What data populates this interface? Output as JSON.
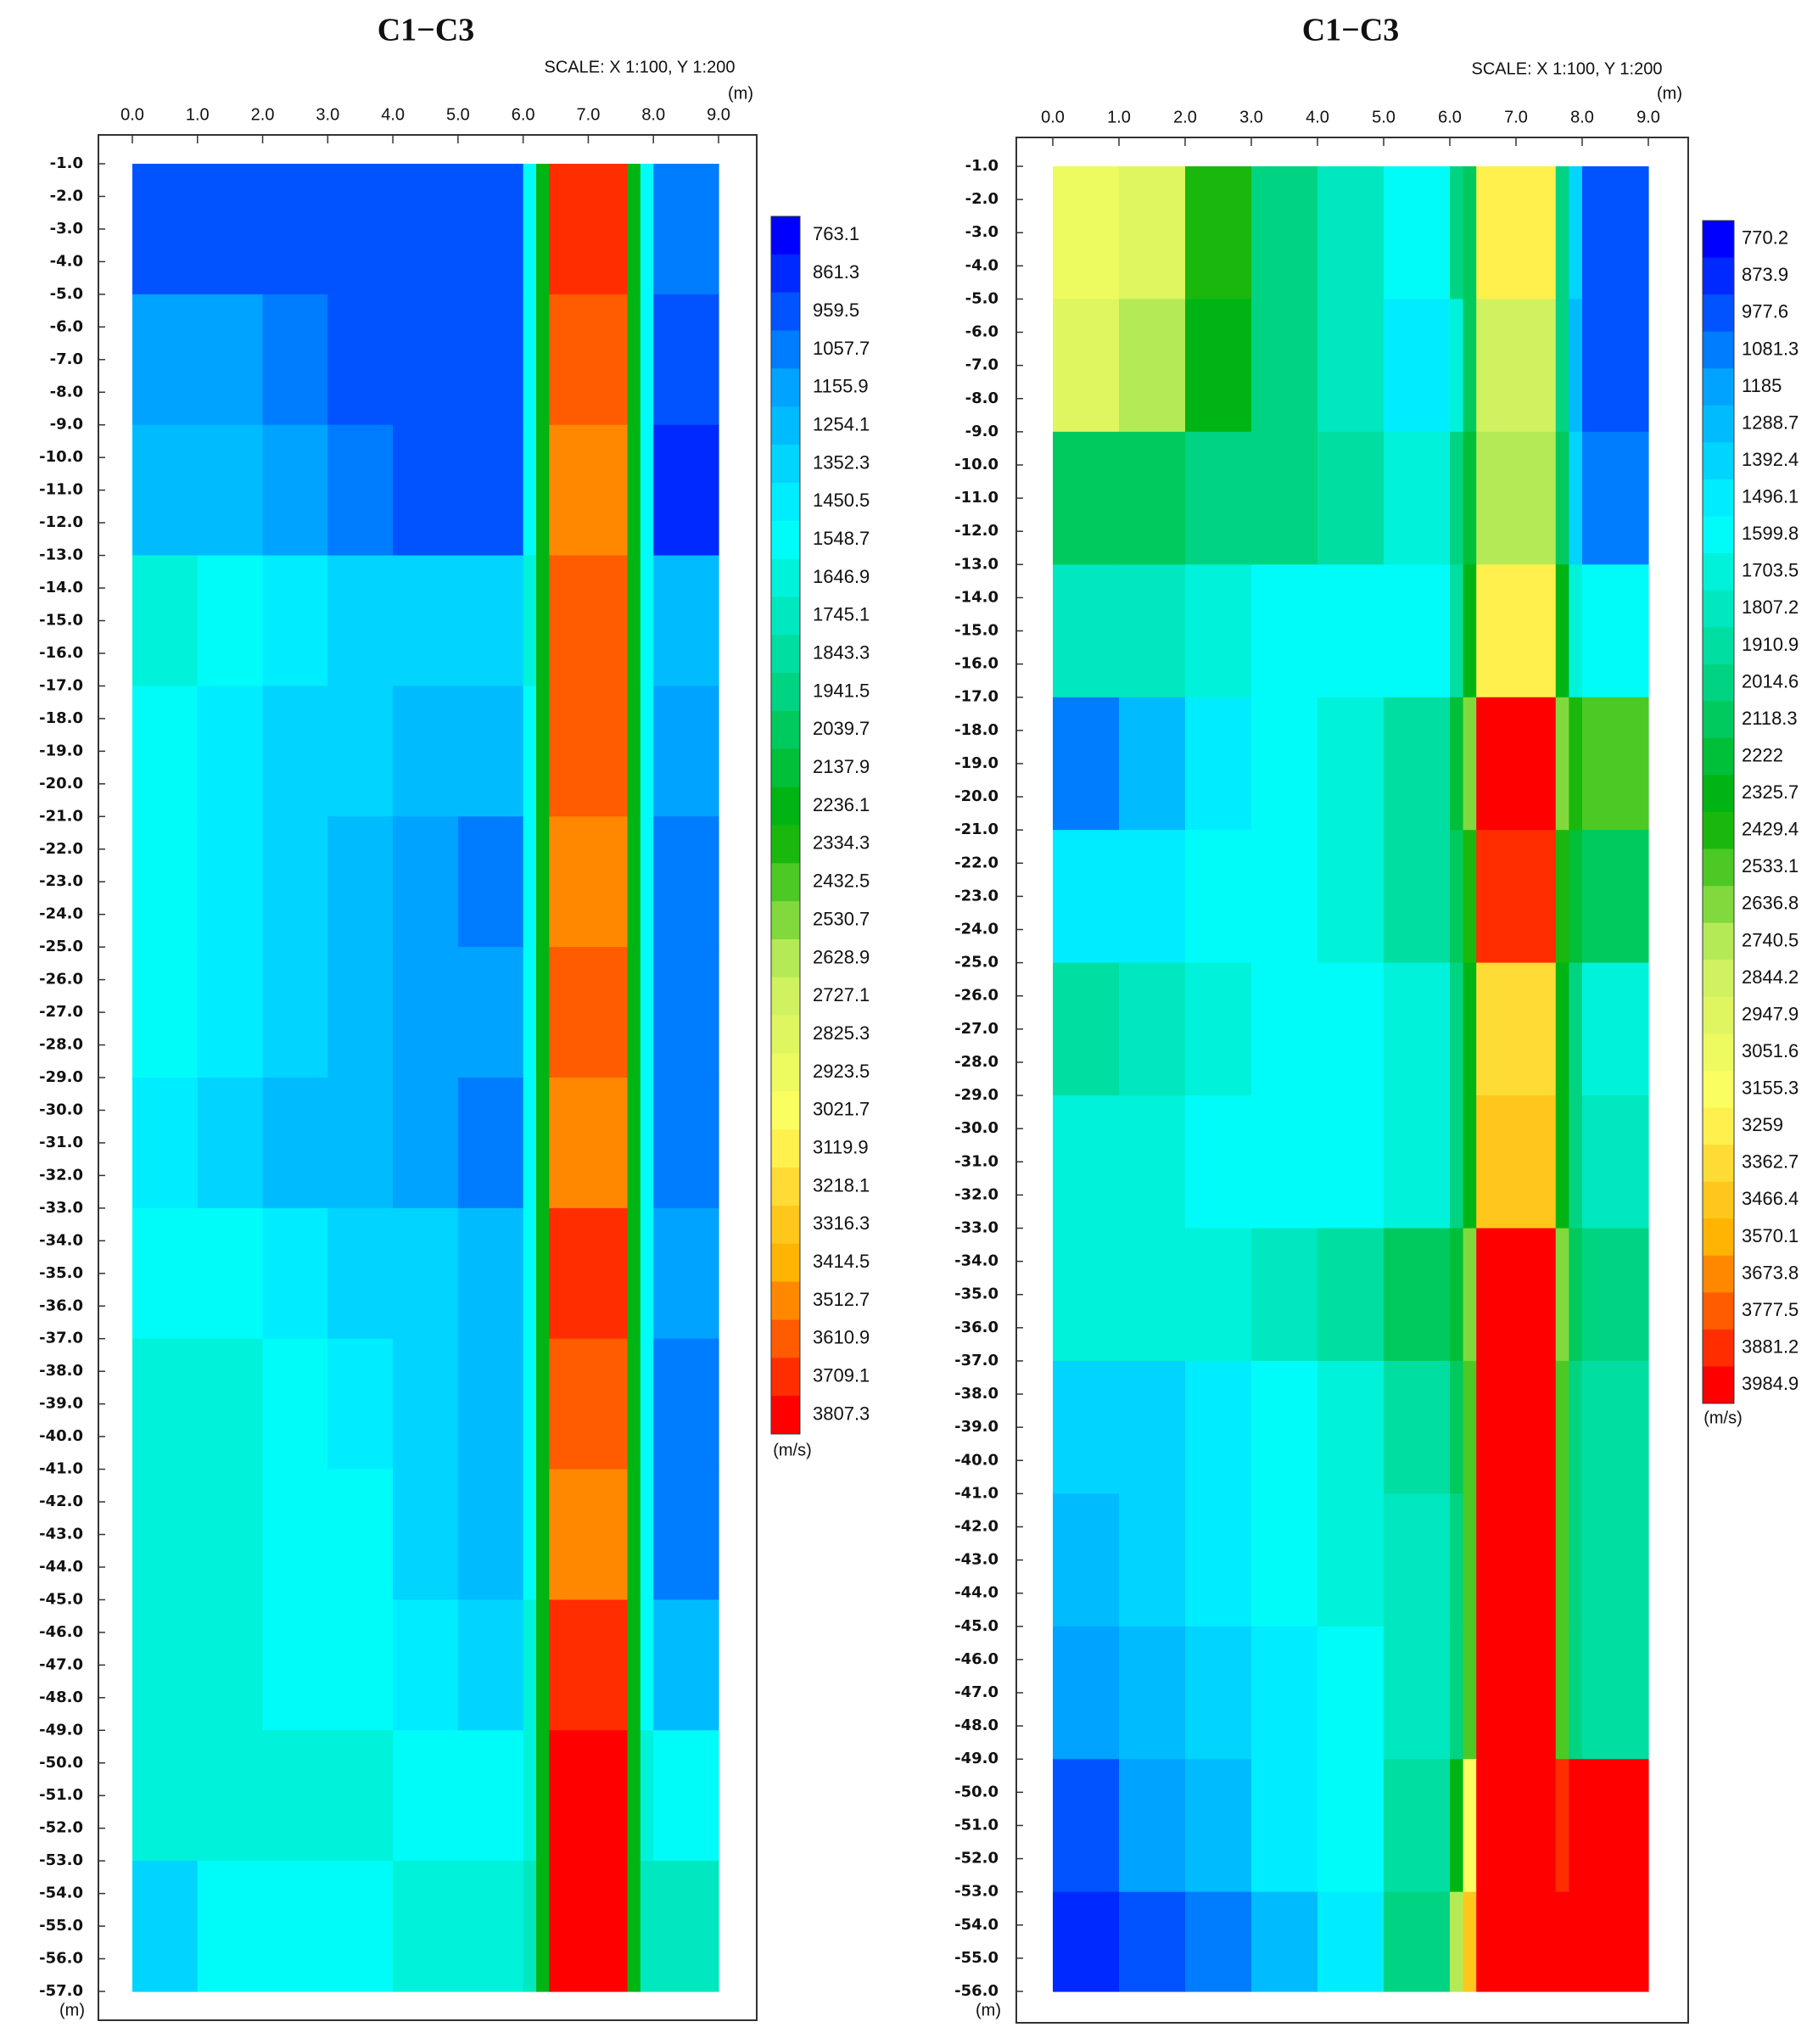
{
  "chart_data": [
    {
      "type": "heatmap",
      "title": "C1−C3",
      "subtitle": "SCALE: X 1:100, Y 1:200",
      "x_label": "(m)",
      "y_label": "(m)",
      "x": [
        0,
        1,
        2,
        3,
        4,
        5,
        6,
        6.2,
        6.4,
        7.6,
        7.8,
        8,
        9
      ],
      "y": [
        -1,
        -5,
        -9,
        -13,
        -17,
        -21,
        -25,
        -29,
        -33,
        -37,
        -41,
        -45,
        -49,
        -53,
        -57
      ],
      "z": [
        [
          950,
          950,
          950,
          950,
          950,
          950,
          1500,
          2200,
          3700,
          2200,
          1500,
          1050
        ],
        [
          1150,
          1150,
          1050,
          1000,
          980,
          950,
          1500,
          2200,
          3600,
          2200,
          1500,
          950
        ],
        [
          1300,
          1250,
          1150,
          1050,
          1000,
          950,
          1500,
          2200,
          3500,
          2200,
          1500,
          900
        ],
        [
          1600,
          1550,
          1450,
          1400,
          1400,
          1400,
          1600,
          2200,
          3600,
          2200,
          1500,
          1250
        ],
        [
          1500,
          1450,
          1400,
          1350,
          1300,
          1250,
          1550,
          2200,
          3600,
          2200,
          1500,
          1200
        ],
        [
          1500,
          1450,
          1350,
          1250,
          1150,
          1100,
          1500,
          2200,
          3500,
          2200,
          1500,
          1050
        ],
        [
          1550,
          1450,
          1350,
          1250,
          1200,
          1150,
          1500,
          2200,
          3650,
          2200,
          1500,
          1100
        ],
        [
          1450,
          1400,
          1300,
          1250,
          1200,
          1100,
          1500,
          2200,
          3500,
          2200,
          1500,
          1050
        ],
        [
          1500,
          1500,
          1450,
          1400,
          1350,
          1300,
          1550,
          2200,
          3700,
          2200,
          1500,
          1150
        ],
        [
          1650,
          1600,
          1550,
          1450,
          1350,
          1250,
          1550,
          2200,
          3600,
          2200,
          1500,
          1100
        ],
        [
          1650,
          1600,
          1550,
          1500,
          1400,
          1300,
          1550,
          2200,
          3550,
          2200,
          1500,
          1100
        ],
        [
          1600,
          1600,
          1550,
          1500,
          1450,
          1400,
          1600,
          2200,
          3700,
          2200,
          1500,
          1250
        ],
        [
          1650,
          1650,
          1600,
          1600,
          1550,
          1500,
          1650,
          2200,
          3800,
          2200,
          1600,
          1500
        ],
        [
          1400,
          1500,
          1550,
          1550,
          1600,
          1650,
          1700,
          2200,
          3800,
          2200,
          1700,
          1750
        ]
      ],
      "xlim": [
        0,
        9
      ],
      "ylim": [
        -57,
        -1
      ],
      "xticks": [
        {
          "value": 0,
          "label": "0.0"
        },
        {
          "value": 1,
          "label": "1.0"
        },
        {
          "value": 2,
          "label": "2.0"
        },
        {
          "value": 3,
          "label": "3.0"
        },
        {
          "value": 4,
          "label": "4.0"
        },
        {
          "value": 5,
          "label": "5.0"
        },
        {
          "value": 6,
          "label": "6.0"
        },
        {
          "value": 7,
          "label": "7.0"
        },
        {
          "value": 8,
          "label": "8.0"
        },
        {
          "value": 9,
          "label": "9.0"
        }
      ],
      "yticks": [
        {
          "value": -1,
          "label": "-1.0"
        },
        {
          "value": -2,
          "label": "-2.0"
        },
        {
          "value": -3,
          "label": "-3.0"
        },
        {
          "value": -4,
          "label": "-4.0"
        },
        {
          "value": -5,
          "label": "-5.0"
        },
        {
          "value": -6,
          "label": "-6.0"
        },
        {
          "value": -7,
          "label": "-7.0"
        },
        {
          "value": -8,
          "label": "-8.0"
        },
        {
          "value": -9,
          "label": "-9.0"
        },
        {
          "value": -10,
          "label": "-10.0"
        },
        {
          "value": -11,
          "label": "-11.0"
        },
        {
          "value": -12,
          "label": "-12.0"
        },
        {
          "value": -13,
          "label": "-13.0"
        },
        {
          "value": -14,
          "label": "-14.0"
        },
        {
          "value": -15,
          "label": "-15.0"
        },
        {
          "value": -16,
          "label": "-16.0"
        },
        {
          "value": -17,
          "label": "-17.0"
        },
        {
          "value": -18,
          "label": "-18.0"
        },
        {
          "value": -19,
          "label": "-19.0"
        },
        {
          "value": -20,
          "label": "-20.0"
        },
        {
          "value": -21,
          "label": "-21.0"
        },
        {
          "value": -22,
          "label": "-22.0"
        },
        {
          "value": -23,
          "label": "-23.0"
        },
        {
          "value": -24,
          "label": "-24.0"
        },
        {
          "value": -25,
          "label": "-25.0"
        },
        {
          "value": -26,
          "label": "-26.0"
        },
        {
          "value": -27,
          "label": "-27.0"
        },
        {
          "value": -28,
          "label": "-28.0"
        },
        {
          "value": -29,
          "label": "-29.0"
        },
        {
          "value": -30,
          "label": "-30.0"
        },
        {
          "value": -31,
          "label": "-31.0"
        },
        {
          "value": -32,
          "label": "-32.0"
        },
        {
          "value": -33,
          "label": "-33.0"
        },
        {
          "value": -34,
          "label": "-34.0"
        },
        {
          "value": -35,
          "label": "-35.0"
        },
        {
          "value": -36,
          "label": "-36.0"
        },
        {
          "value": -37,
          "label": "-37.0"
        },
        {
          "value": -38,
          "label": "-38.0"
        },
        {
          "value": -39,
          "label": "-39.0"
        },
        {
          "value": -40,
          "label": "-40.0"
        },
        {
          "value": -41,
          "label": "-41.0"
        },
        {
          "value": -42,
          "label": "-42.0"
        },
        {
          "value": -43,
          "label": "-43.0"
        },
        {
          "value": -44,
          "label": "-44.0"
        },
        {
          "value": -45,
          "label": "-45.0"
        },
        {
          "value": -46,
          "label": "-46.0"
        },
        {
          "value": -47,
          "label": "-47.0"
        },
        {
          "value": -48,
          "label": "-48.0"
        },
        {
          "value": -49,
          "label": "-49.0"
        },
        {
          "value": -50,
          "label": "-50.0"
        },
        {
          "value": -51,
          "label": "-51.0"
        },
        {
          "value": -52,
          "label": "-52.0"
        },
        {
          "value": -53,
          "label": "-53.0"
        },
        {
          "value": -54,
          "label": "-54.0"
        },
        {
          "value": -55,
          "label": "-55.0"
        },
        {
          "value": -56,
          "label": "-56.0"
        },
        {
          "value": -57,
          "label": "-57.0"
        }
      ],
      "colorbar": {
        "label": "(m/s)",
        "levels": [
          763.1,
          861.3,
          959.5,
          1057.7,
          1155.9,
          1254.1,
          1352.3,
          1450.5,
          1548.7,
          1646.9,
          1745.1,
          1843.3,
          1941.5,
          2039.7,
          2137.9,
          2236.1,
          2334.3,
          2432.5,
          2530.7,
          2628.9,
          2727.1,
          2825.3,
          2923.5,
          3021.7,
          3119.9,
          3218.1,
          3316.3,
          3414.5,
          3512.7,
          3610.9,
          3709.1,
          3807.3
        ]
      },
      "colormap": [
        "#0000ff",
        "#00a0ff",
        "#00ffff",
        "#00d890",
        "#00b000",
        "#c8f060",
        "#ffff60",
        "#ffb000",
        "#ff0000"
      ]
    },
    {
      "type": "heatmap",
      "title": "C1−C3",
      "subtitle": "SCALE: X 1:100, Y 1:200",
      "x_label": "(m)",
      "y_label": "(m)",
      "x": [
        0,
        1,
        2,
        3,
        4,
        5,
        6,
        6.2,
        6.4,
        7.6,
        7.8,
        8,
        9
      ],
      "y": [
        -1,
        -5,
        -9,
        -13,
        -17,
        -21,
        -25,
        -29,
        -33,
        -37,
        -41,
        -45,
        -49,
        -53,
        -56
      ],
      "z": [
        [
          3100,
          2900,
          2400,
          2000,
          1800,
          1600,
          2000,
          2100,
          3300,
          2000,
          1400,
          1000
        ],
        [
          2900,
          2700,
          2300,
          2000,
          1800,
          1500,
          1700,
          2100,
          2800,
          2000,
          1300,
          1000
        ],
        [
          2100,
          2100,
          2000,
          2000,
          1900,
          1700,
          2000,
          2200,
          2700,
          2100,
          1400,
          1100
        ],
        [
          1800,
          1800,
          1700,
          1650,
          1600,
          1600,
          1900,
          2300,
          3300,
          2300,
          1700,
          1600
        ],
        [
          1100,
          1300,
          1500,
          1600,
          1700,
          1900,
          2200,
          2600,
          3950,
          2600,
          2400,
          2500
        ],
        [
          1450,
          1500,
          1550,
          1600,
          1700,
          1900,
          2100,
          2400,
          3900,
          2400,
          2200,
          2100
        ],
        [
          1900,
          1800,
          1700,
          1650,
          1650,
          1700,
          2000,
          2300,
          3400,
          2300,
          2000,
          1700
        ],
        [
          1700,
          1700,
          1650,
          1600,
          1650,
          1700,
          2000,
          2300,
          3500,
          2300,
          2000,
          1800
        ],
        [
          1700,
          1700,
          1700,
          1800,
          1900,
          2100,
          2200,
          2600,
          3950,
          2600,
          2100,
          2000
        ],
        [
          1350,
          1400,
          1500,
          1600,
          1700,
          1900,
          2100,
          2500,
          3950,
          2500,
          2000,
          1900
        ],
        [
          1300,
          1400,
          1500,
          1600,
          1700,
          1800,
          2000,
          2500,
          3950,
          2500,
          2000,
          1900
        ],
        [
          1200,
          1300,
          1400,
          1500,
          1650,
          1800,
          2000,
          2500,
          3950,
          2500,
          2000,
          1950
        ],
        [
          1000,
          1150,
          1300,
          1450,
          1650,
          1900,
          2300,
          3200,
          3950,
          3900,
          3950,
          3950
        ],
        [
          850,
          950,
          1100,
          1300,
          1500,
          2000,
          2700,
          3500,
          3950,
          3950,
          3950,
          3950
        ]
      ],
      "xlim": [
        0,
        9
      ],
      "ylim": [
        -56,
        -1
      ],
      "xticks": [
        {
          "value": 0,
          "label": "0.0"
        },
        {
          "value": 1,
          "label": "1.0"
        },
        {
          "value": 2,
          "label": "2.0"
        },
        {
          "value": 3,
          "label": "3.0"
        },
        {
          "value": 4,
          "label": "4.0"
        },
        {
          "value": 5,
          "label": "5.0"
        },
        {
          "value": 6,
          "label": "6.0"
        },
        {
          "value": 7,
          "label": "7.0"
        },
        {
          "value": 8,
          "label": "8.0"
        },
        {
          "value": 9,
          "label": "9.0"
        }
      ],
      "yticks": [
        {
          "value": -1,
          "label": "-1.0"
        },
        {
          "value": -2,
          "label": "-2.0"
        },
        {
          "value": -3,
          "label": "-3.0"
        },
        {
          "value": -4,
          "label": "-4.0"
        },
        {
          "value": -5,
          "label": "-5.0"
        },
        {
          "value": -6,
          "label": "-6.0"
        },
        {
          "value": -7,
          "label": "-7.0"
        },
        {
          "value": -8,
          "label": "-8.0"
        },
        {
          "value": -9,
          "label": "-9.0"
        },
        {
          "value": -10,
          "label": "-10.0"
        },
        {
          "value": -11,
          "label": "-11.0"
        },
        {
          "value": -12,
          "label": "-12.0"
        },
        {
          "value": -13,
          "label": "-13.0"
        },
        {
          "value": -14,
          "label": "-14.0"
        },
        {
          "value": -15,
          "label": "-15.0"
        },
        {
          "value": -16,
          "label": "-16.0"
        },
        {
          "value": -17,
          "label": "-17.0"
        },
        {
          "value": -18,
          "label": "-18.0"
        },
        {
          "value": -19,
          "label": "-19.0"
        },
        {
          "value": -20,
          "label": "-20.0"
        },
        {
          "value": -21,
          "label": "-21.0"
        },
        {
          "value": -22,
          "label": "-22.0"
        },
        {
          "value": -23,
          "label": "-23.0"
        },
        {
          "value": -24,
          "label": "-24.0"
        },
        {
          "value": -25,
          "label": "-25.0"
        },
        {
          "value": -26,
          "label": "-26.0"
        },
        {
          "value": -27,
          "label": "-27.0"
        },
        {
          "value": -28,
          "label": "-28.0"
        },
        {
          "value": -29,
          "label": "-29.0"
        },
        {
          "value": -30,
          "label": "-30.0"
        },
        {
          "value": -31,
          "label": "-31.0"
        },
        {
          "value": -32,
          "label": "-32.0"
        },
        {
          "value": -33,
          "label": "-33.0"
        },
        {
          "value": -34,
          "label": "-34.0"
        },
        {
          "value": -35,
          "label": "-35.0"
        },
        {
          "value": -36,
          "label": "-36.0"
        },
        {
          "value": -37,
          "label": "-37.0"
        },
        {
          "value": -38,
          "label": "-38.0"
        },
        {
          "value": -39,
          "label": "-39.0"
        },
        {
          "value": -40,
          "label": "-40.0"
        },
        {
          "value": -41,
          "label": "-41.0"
        },
        {
          "value": -42,
          "label": "-42.0"
        },
        {
          "value": -43,
          "label": "-43.0"
        },
        {
          "value": -44,
          "label": "-44.0"
        },
        {
          "value": -45,
          "label": "-45.0"
        },
        {
          "value": -46,
          "label": "-46.0"
        },
        {
          "value": -47,
          "label": "-47.0"
        },
        {
          "value": -48,
          "label": "-48.0"
        },
        {
          "value": -49,
          "label": "-49.0"
        },
        {
          "value": -50,
          "label": "-50.0"
        },
        {
          "value": -51,
          "label": "-51.0"
        },
        {
          "value": -52,
          "label": "-52.0"
        },
        {
          "value": -53,
          "label": "-53.0"
        },
        {
          "value": -54,
          "label": "-54.0"
        },
        {
          "value": -55,
          "label": "-55.0"
        },
        {
          "value": -56,
          "label": "-56.0"
        }
      ],
      "colorbar": {
        "label": "(m/s)",
        "levels": [
          770.2,
          873.9,
          977.6,
          1081.3,
          1185,
          1288.7,
          1392.4,
          1496.1,
          1599.8,
          1703.5,
          1807.2,
          1910.9,
          2014.6,
          2118.3,
          2222,
          2325.7,
          2429.4,
          2533.1,
          2636.8,
          2740.5,
          2844.2,
          2947.9,
          3051.6,
          3155.3,
          3259,
          3362.7,
          3466.4,
          3570.1,
          3673.8,
          3777.5,
          3881.2,
          3984.9
        ]
      },
      "colormap": [
        "#0000ff",
        "#00a0ff",
        "#00ffff",
        "#00d890",
        "#00b000",
        "#c8f060",
        "#ffff60",
        "#ffb000",
        "#ff0000"
      ]
    }
  ]
}
